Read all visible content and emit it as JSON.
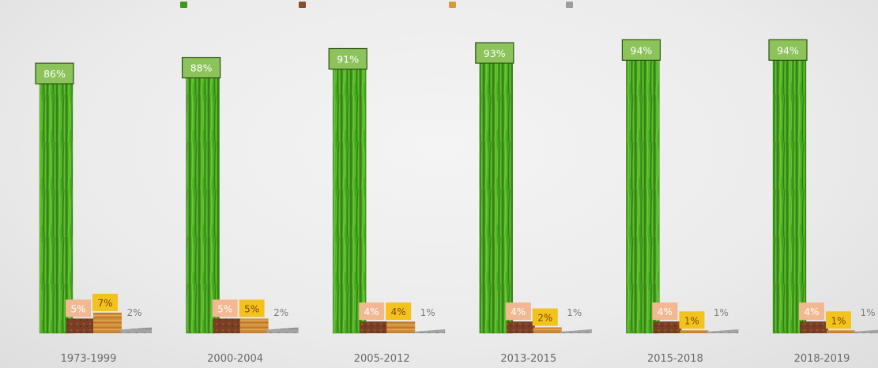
{
  "chart_data": {
    "type": "bar",
    "categories": [
      "1973-1999",
      "2000-2004",
      "2005-2012",
      "2013-2015",
      "2015-2018",
      "2018-2019"
    ],
    "series": [
      {
        "name": "",
        "values": [
          86,
          88,
          91,
          93,
          94,
          94
        ],
        "labels": [
          "86%",
          "88%",
          "91%",
          "93%",
          "94%",
          "94%"
        ],
        "color": "#3e9a1c"
      },
      {
        "name": "",
        "values": [
          5,
          5,
          4,
          4,
          4,
          4
        ],
        "labels": [
          "5%",
          "5%",
          "4%",
          "4%",
          "4%",
          "4%"
        ],
        "color": "#8a4a2e"
      },
      {
        "name": "",
        "values": [
          7,
          5,
          4,
          2,
          1,
          1
        ],
        "labels": [
          "7%",
          "5%",
          "4%",
          "2%",
          "1%",
          "1%"
        ],
        "color": "#d99a3c"
      },
      {
        "name": "",
        "values": [
          2,
          2,
          1,
          1,
          1,
          1
        ],
        "labels": [
          "2%",
          "2%",
          "1%",
          "1%",
          "1%",
          "1%"
        ],
        "color": "#9c9c9c"
      }
    ],
    "legend_position": "top",
    "ylim": [
      0,
      100
    ],
    "grid": false,
    "title": "",
    "xlabel": "",
    "ylabel": ""
  }
}
